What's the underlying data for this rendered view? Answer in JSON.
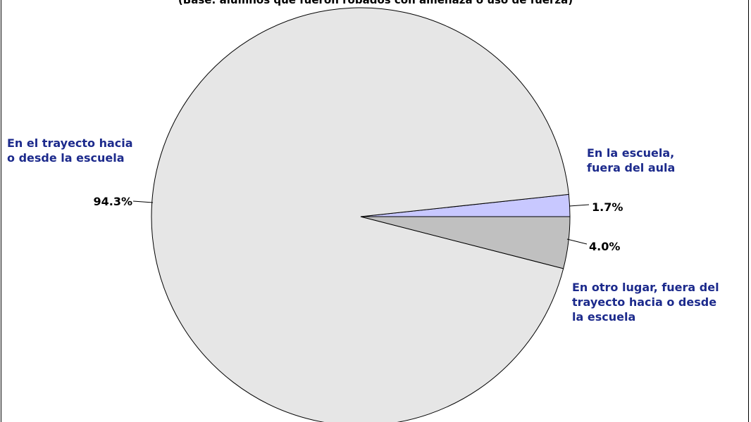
{
  "chart_data": {
    "type": "pie",
    "subtitle": "(Base: alumnos que fueron robados con amenaza o uso de fuerza)",
    "categories": [
      "En la escuela,\nfuera del aula",
      "En el trayecto hacia\no desde la escuela",
      "En otro lugar, fuera del\ntrayecto hacia o desde\nla escuela"
    ],
    "values": [
      1.7,
      94.3,
      4.0
    ],
    "value_labels": [
      "1.7%",
      "94.3%",
      "4.0%"
    ],
    "colors": [
      "#c8c8ff",
      "#e6e6e6",
      "#c0c0c0"
    ],
    "label_color": "#1c2a8c"
  }
}
